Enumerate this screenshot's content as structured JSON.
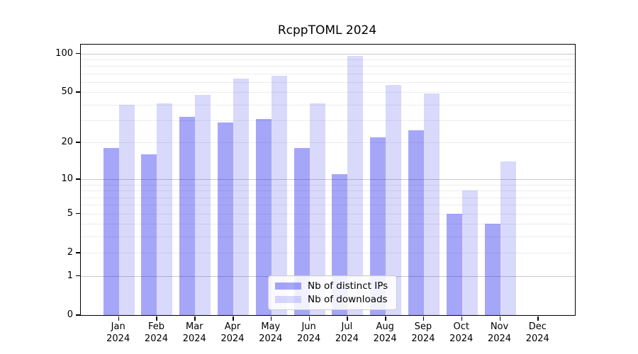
{
  "chart_data": {
    "type": "bar",
    "title": "RcppTOML 2024",
    "categories": [
      "Jan",
      "Feb",
      "Mar",
      "Apr",
      "May",
      "Jun",
      "Jul",
      "Aug",
      "Sep",
      "Oct",
      "Nov",
      "Dec"
    ],
    "year": "2024",
    "series": [
      {
        "name": "Nb of distinct IPs",
        "color": "rgba(0,0,238,0.35)",
        "values": [
          18,
          16,
          32,
          29,
          31,
          18,
          11,
          22,
          25,
          5,
          4,
          0
        ]
      },
      {
        "name": "Nb of downloads",
        "color": "rgba(0,0,238,0.15)",
        "values": [
          40,
          41,
          48,
          64,
          67,
          41,
          96,
          57,
          49,
          8,
          14,
          0
        ]
      }
    ],
    "xlabel": "",
    "ylabel": "",
    "yscale": "log1p",
    "ylim": [
      0,
      117.5
    ],
    "y_ticks": [
      0,
      1,
      2,
      5,
      10,
      20,
      50,
      100
    ],
    "y_major_gridlines": [
      1,
      10,
      100
    ],
    "y_minor_gridlines": [
      2,
      3,
      4,
      5,
      6,
      7,
      8,
      9,
      20,
      30,
      40,
      50,
      60,
      70,
      80,
      90
    ],
    "grid": true,
    "legend_position": "bottom-center"
  },
  "colors": {
    "axis": "#000000",
    "major_grid": "#c9c9c9",
    "minor_grid": "#ededed",
    "legend_border": "#cccccc",
    "legend_background": "rgba(255,255,255,0.85)",
    "text": "#000000",
    "background": "#ffffff"
  }
}
